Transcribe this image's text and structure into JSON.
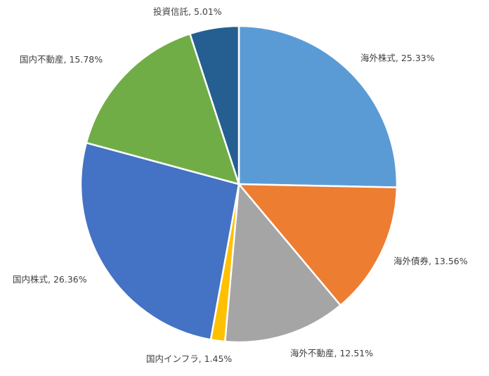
{
  "chart_data": {
    "type": "pie",
    "title": "",
    "slices": [
      {
        "name": "海外株式",
        "value": 25.33,
        "label": "海外株式, 25.33%",
        "color": "#5B9BD5"
      },
      {
        "name": "海外債券",
        "value": 13.56,
        "label": "海外債券, 13.56%",
        "color": "#ED7D31"
      },
      {
        "name": "海外不動産",
        "value": 12.51,
        "label": "海外不動産, 12.51%",
        "color": "#A5A5A5"
      },
      {
        "name": "国内インフラ",
        "value": 1.45,
        "label": "国内インフラ, 1.45%",
        "color": "#FFC000"
      },
      {
        "name": "国内株式",
        "value": 26.36,
        "label": "国内株式, 26.36%",
        "color": "#4472C4"
      },
      {
        "name": "国内不動産",
        "value": 15.78,
        "label": "国内不動産, 15.78%",
        "color": "#70AD47"
      },
      {
        "name": "投資信託",
        "value": 5.01,
        "label": "投資信託, 5.01%",
        "color": "#255E91"
      }
    ],
    "start": "12 o'clock",
    "direction": "clockwise",
    "legend": "none",
    "data_labels": "outside"
  }
}
